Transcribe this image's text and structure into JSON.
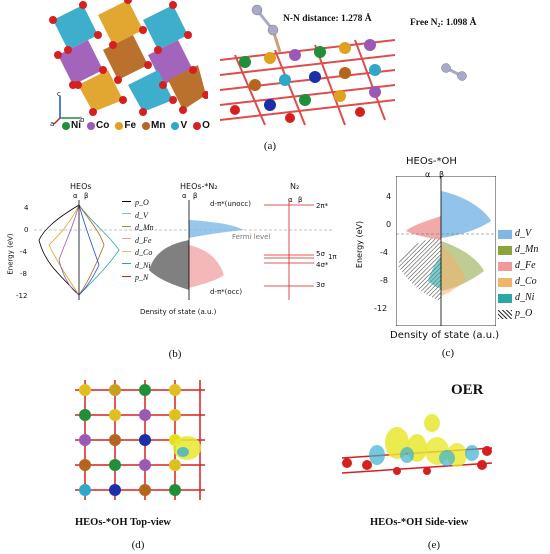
{
  "panel_a": {
    "label": "(a)",
    "nn_distance": "N-N distance: 1.278 Å",
    "free_n2": "Free N₂: 1.098 Å",
    "axes": {
      "c": "c",
      "a": "a",
      "b": "b"
    },
    "elements": [
      {
        "symbol": "Ni",
        "color": "#1f8f3a"
      },
      {
        "symbol": "Co",
        "color": "#9b59b6"
      },
      {
        "symbol": "Fe",
        "color": "#e0a020"
      },
      {
        "symbol": "Mn",
        "color": "#b5651d"
      },
      {
        "symbol": "V",
        "color": "#2ea8c9"
      },
      {
        "symbol": "O",
        "color": "#d62020"
      }
    ]
  },
  "panel_b": {
    "label": "(b)",
    "sub_titles": [
      "HEOs",
      "HEOs-*N₂",
      "N₂"
    ],
    "spin_labels": [
      "α",
      "β"
    ],
    "ylabel": "Energy (eV)",
    "xlabel": "Density of state (a.u.)",
    "yticks": [
      "4",
      "0",
      "-4",
      "-8",
      "-12"
    ],
    "legend": [
      "p_O",
      "d_V",
      "d_Mn",
      "d_Fe",
      "d_Co",
      "d_Ni",
      "p_N"
    ],
    "annotations": {
      "fermi": "Fermi level",
      "unocc": "d-π*(unocc)",
      "occ": "d-π*(occ)",
      "orbitals": [
        "2π*",
        "5σ",
        "1π",
        "4σ*",
        "3σ"
      ]
    }
  },
  "panel_c": {
    "label": "(c)",
    "title": "HEOs-*OH",
    "spin_labels": [
      "α",
      "β"
    ],
    "ylabel": "Energy (eV)",
    "xlabel": "Density of state (a.u.)",
    "yticks": [
      "4",
      "0",
      "-4",
      "-8",
      "-12"
    ],
    "legend": [
      {
        "name": "d_V",
        "color": "#7fb8e6"
      },
      {
        "name": "d_Mn",
        "color": "#8aa33a"
      },
      {
        "name": "d_Fe",
        "color": "#f09a9a"
      },
      {
        "name": "d_Co",
        "color": "#f2b36b"
      },
      {
        "name": "d_Ni",
        "color": "#2aa6a6"
      },
      {
        "name": "p_O",
        "color": "#555555"
      }
    ]
  },
  "panel_d": {
    "label": "(d)",
    "caption": "HEOs-*OH Top-view"
  },
  "panel_e": {
    "label": "(e)",
    "caption": "HEOs-*OH Side-view",
    "title": "OER"
  }
}
